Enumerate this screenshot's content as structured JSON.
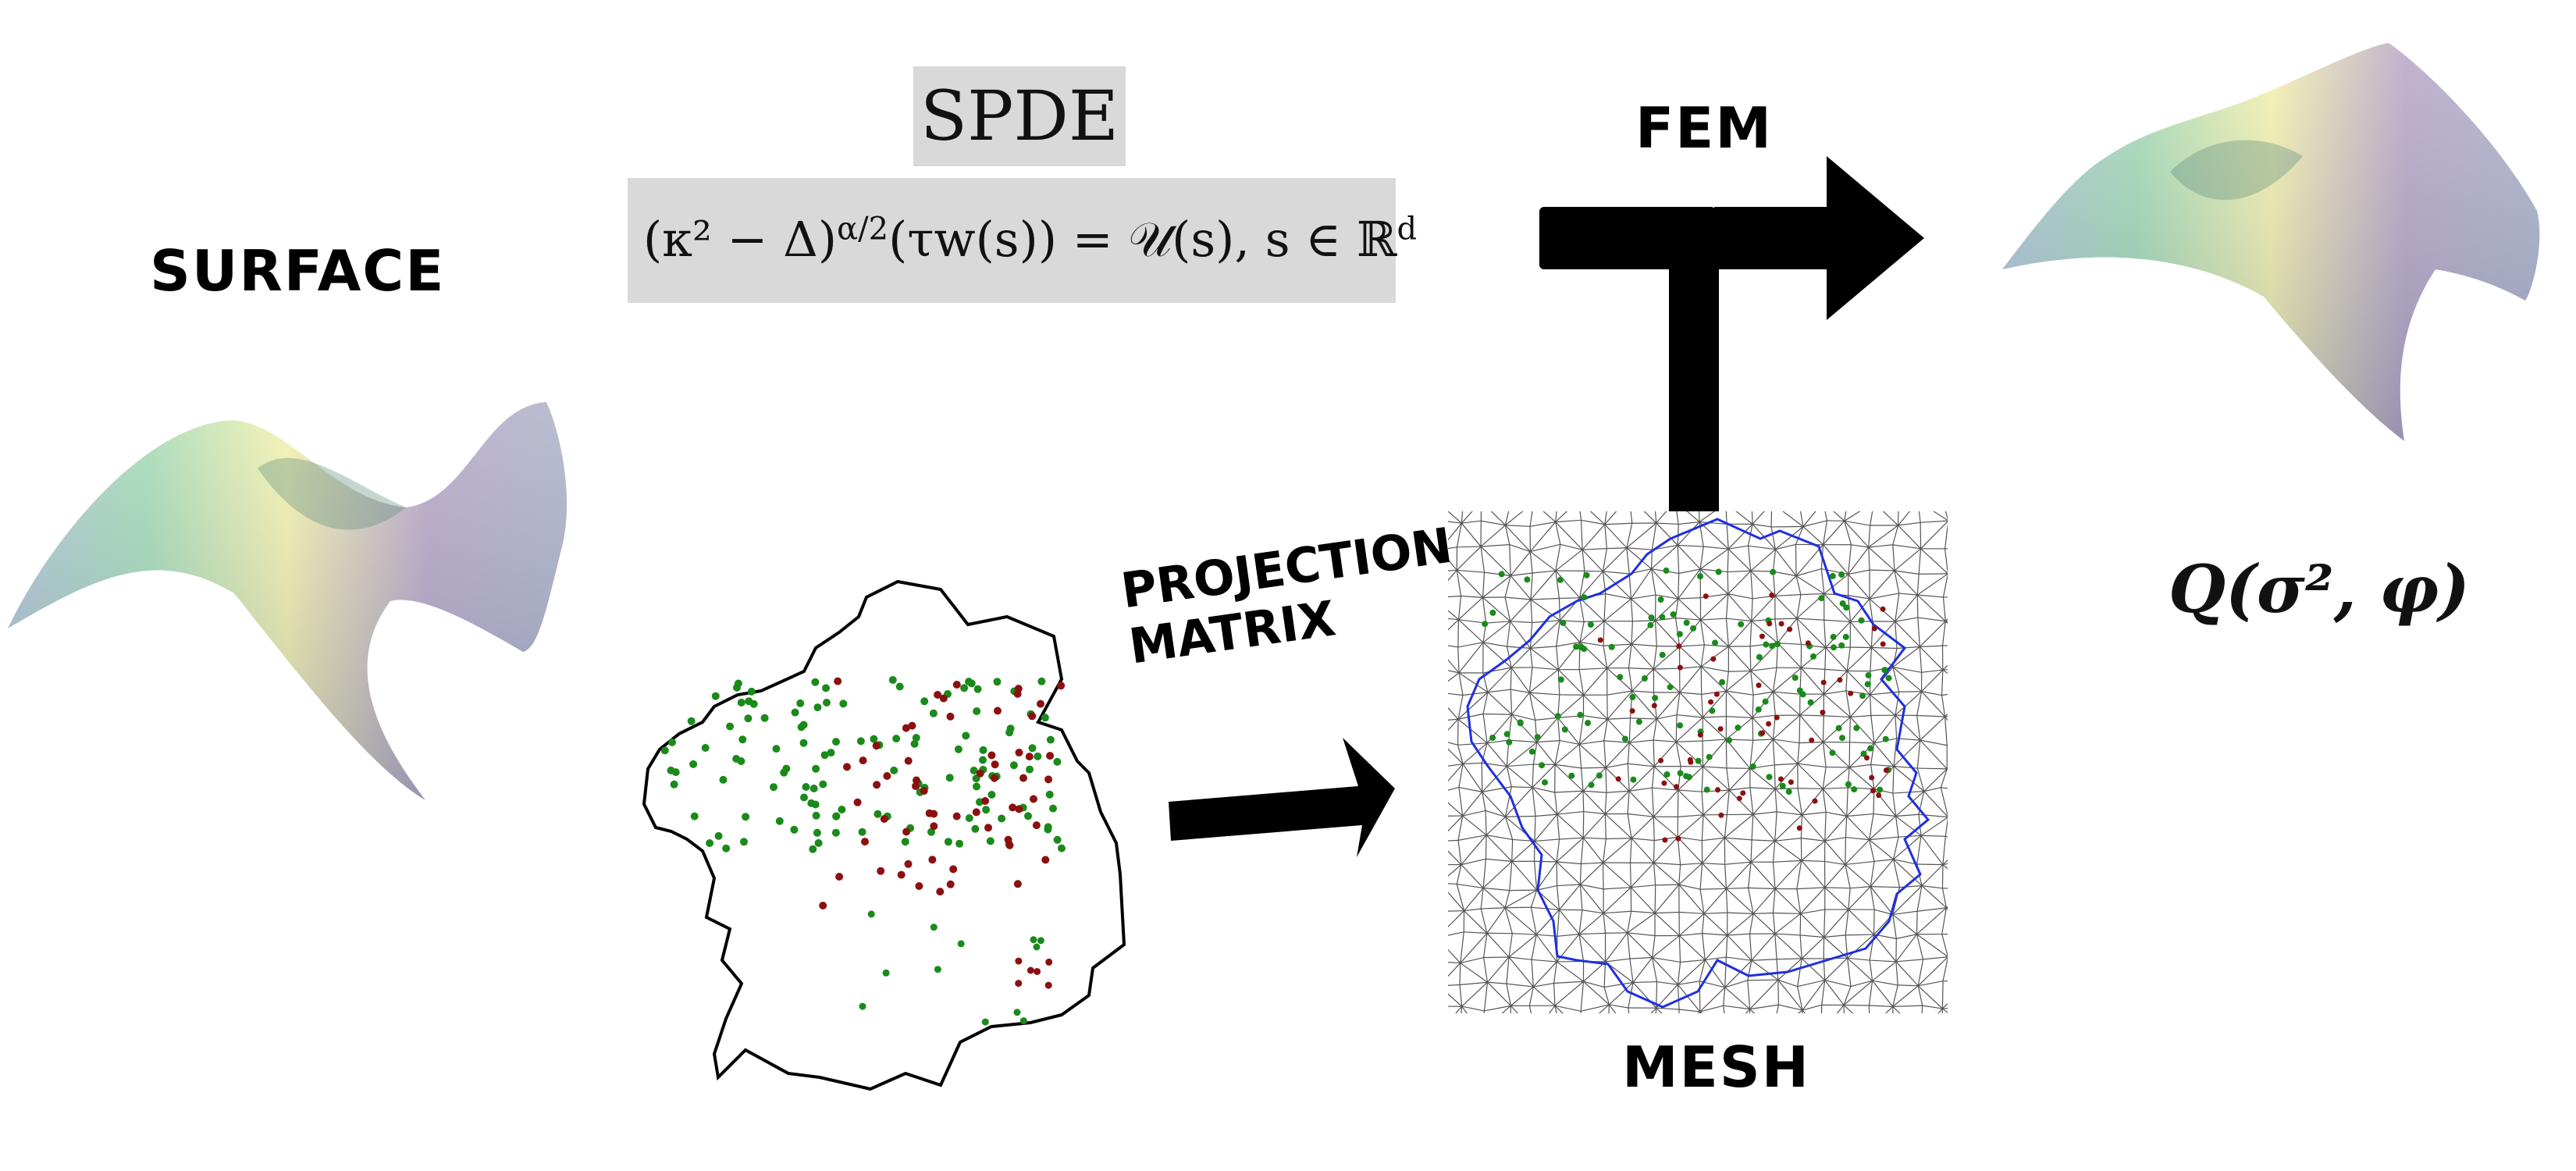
{
  "labels": {
    "surface": "SURFACE",
    "spde_title": "SPDE",
    "equation": "(κ² − Δ)^{α/2}(τw(s)) = 𝒰(s),  s ∈ ℝ^d",
    "fem": "FEM",
    "projection_line1": "PROJECTION",
    "projection_line2": "MATRIX",
    "mesh": "MESH",
    "precision": "Q(σ², φ)"
  },
  "colors": {
    "background": "#ffffff",
    "arrow": "#000000",
    "formula_box": "#d9d9d9",
    "point_green": "#1a8a1a",
    "point_red": "#8b1010",
    "mesh_edges": "#555555",
    "boundary_blue": "#1f2fe0",
    "surface_yellow": "#f4ef9a",
    "surface_green": "#8fd3a4",
    "surface_purple": "#a792b8"
  }
}
